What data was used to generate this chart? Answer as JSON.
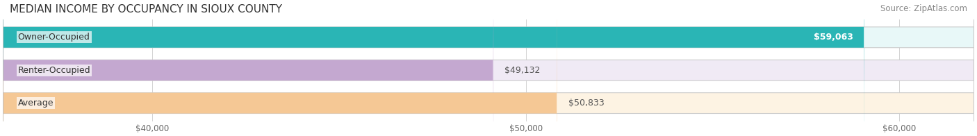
{
  "title": "MEDIAN INCOME BY OCCUPANCY IN SIOUX COUNTY",
  "source": "Source: ZipAtlas.com",
  "categories": [
    "Owner-Occupied",
    "Renter-Occupied",
    "Average"
  ],
  "values": [
    59063,
    49132,
    50833
  ],
  "bar_colors": [
    "#2ab5b5",
    "#c4a8d0",
    "#f5c895"
  ],
  "bar_bg_colors": [
    "#e8f8f8",
    "#f0eaf5",
    "#fdf3e3"
  ],
  "value_labels": [
    "$59,063",
    "$49,132",
    "$50,833"
  ],
  "label_inside": [
    true,
    false,
    false
  ],
  "xlim": [
    36000,
    62000
  ],
  "xticks": [
    40000,
    50000,
    60000
  ],
  "xtick_labels": [
    "$40,000",
    "$50,000",
    "$60,000"
  ],
  "title_fontsize": 11,
  "source_fontsize": 8.5,
  "bar_label_fontsize": 9,
  "value_fontsize": 9,
  "background_color": "#ffffff"
}
